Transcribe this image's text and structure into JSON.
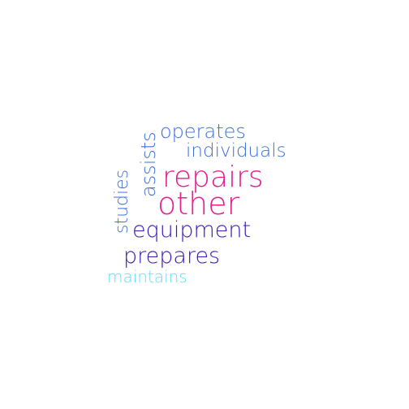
{
  "words": [
    {
      "text": "repairs",
      "color": "#e91e8c"
    },
    {
      "text": "other",
      "color": "#e91e8c"
    },
    {
      "text": "equipment",
      "color": "#3a19b8"
    },
    {
      "text": "prepares",
      "color": "#3a19b8"
    },
    {
      "text": "operates",
      "color": "#3f6fd8"
    },
    {
      "text": "individuals",
      "color": "#3f6fd8"
    },
    {
      "text": "assists",
      "color": "#3f6fd8"
    },
    {
      "text": "studies",
      "color": "#3f6fd8"
    },
    {
      "text": "maintains",
      "color": "#5fe0f0"
    }
  ]
}
